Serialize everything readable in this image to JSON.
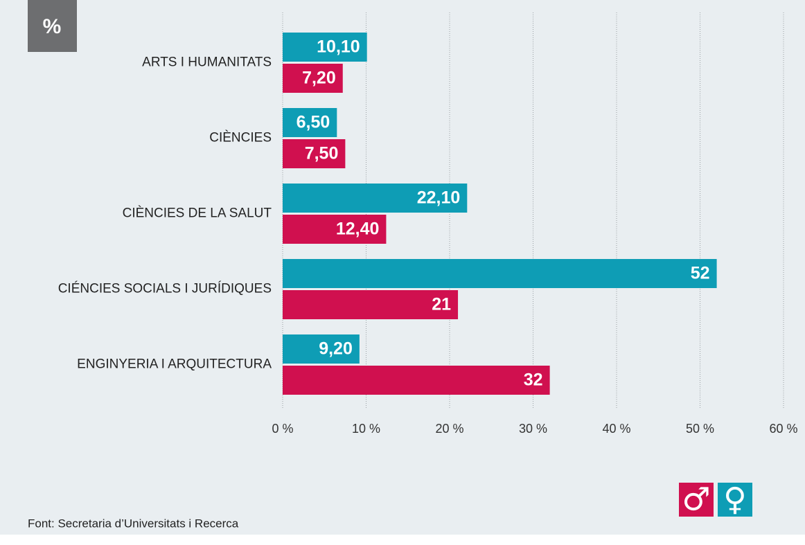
{
  "chart_data": {
    "type": "hbar",
    "title": "%",
    "categories": [
      "ARTS I HUMANITATS",
      "CIÈNCIES",
      "CIÈNCIES DE LA SALUT",
      "CIÉNCIES SOCIALS I JURÍDIQUES",
      "ENGINYERIA I ARQUITECTURA"
    ],
    "series": [
      {
        "name": "♀",
        "color": "#0e9db5",
        "values": [
          10.1,
          6.5,
          22.1,
          52,
          9.2
        ],
        "value_labels": [
          "10,10",
          "6,50",
          "22,10",
          "52",
          "9,20"
        ]
      },
      {
        "name": "♂",
        "color": "#d0104f",
        "values": [
          7.2,
          7.5,
          12.4,
          21,
          32
        ],
        "value_labels": [
          "7,20",
          "7,50",
          "12,40",
          "21",
          "32"
        ]
      }
    ],
    "xlim": [
      0,
      60
    ],
    "xticks": [
      {
        "value": 0,
        "label": "0 %"
      },
      {
        "value": 10,
        "label": "10 %"
      },
      {
        "value": 20,
        "label": "20 %"
      },
      {
        "value": 30,
        "label": "30 %"
      },
      {
        "value": 40,
        "label": "40 %"
      },
      {
        "value": 50,
        "label": "50 %"
      },
      {
        "value": 60,
        "label": "60 %"
      }
    ],
    "grid": true,
    "source": "Font: Secretaria d’Universitats i Recerca"
  }
}
